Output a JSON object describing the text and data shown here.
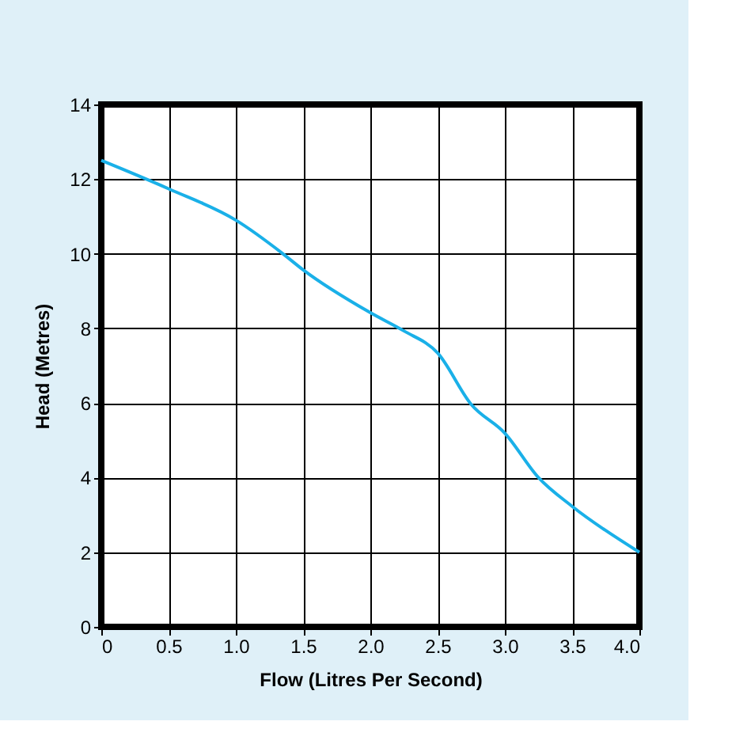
{
  "chart_data": {
    "type": "line",
    "xlabel": "Flow (Litres Per Second)",
    "ylabel": "Head (Metres)",
    "x": [
      0,
      0.5,
      1.0,
      1.35,
      1.5,
      2.0,
      2.25,
      2.5,
      2.75,
      3.0,
      3.25,
      3.5,
      4.0
    ],
    "series": [
      {
        "color": "#1ab0e8",
        "values": [
          12.5,
          11.74,
          10.9,
          10.0,
          9.57,
          8.42,
          7.93,
          7.34,
          5.96,
          5.19,
          4.0,
          3.23,
          2.0
        ]
      }
    ],
    "xlim": [
      0,
      4
    ],
    "xticks": [
      0,
      0.5,
      {
        "value": 1,
        "label": "1.0"
      },
      1.5,
      {
        "value": 2,
        "label": "2.0"
      },
      2.5,
      {
        "value": 3,
        "label": "3.0"
      },
      3.5,
      {
        "value": 4,
        "label": "4.0"
      }
    ],
    "ylim": [
      0,
      14
    ],
    "yticks": [
      0,
      2,
      4,
      6,
      8,
      10,
      12,
      14
    ],
    "grid": true,
    "marker": "none",
    "line_style": "solid"
  }
}
